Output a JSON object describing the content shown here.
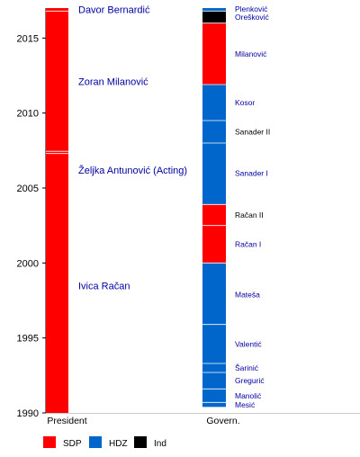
{
  "chart_data": {
    "type": "timeline",
    "ylim": [
      1990,
      2017
    ],
    "yticks": [
      1990,
      1995,
      2000,
      2005,
      2010,
      2015
    ],
    "columns": [
      "President",
      "Govern."
    ],
    "party_colors": {
      "SDP": "#ff0000",
      "HDZ": "#0066cc",
      "Ind": "#000000"
    },
    "legend": [
      {
        "party": "SDP",
        "label": "SDP"
      },
      {
        "party": "HDZ",
        "label": "HDZ"
      },
      {
        "party": "Ind",
        "label": "Ind"
      }
    ],
    "president": [
      {
        "name": "Ivica Račan",
        "start": 1990.0,
        "end": 2007.3,
        "party": "SDP"
      },
      {
        "name": "Željka Antunović (Acting)",
        "start": 2007.3,
        "end": 2007.45,
        "party": "SDP"
      },
      {
        "name": "Zoran Milanović",
        "start": 2007.45,
        "end": 2016.8,
        "party": "SDP"
      },
      {
        "name": "Davor Bernardić",
        "start": 2016.8,
        "end": 2017.0,
        "party": "SDP"
      }
    ],
    "president_label_y": [
      1998.5,
      2006.2,
      2012.1,
      2016.9
    ],
    "government": [
      {
        "name": "Mesić",
        "start": 1990.4,
        "end": 1990.7,
        "party": "HDZ",
        "highlight": true
      },
      {
        "name": "Manolić",
        "start": 1990.7,
        "end": 1991.6,
        "party": "HDZ",
        "highlight": true
      },
      {
        "name": "Gregurić",
        "start": 1991.6,
        "end": 1992.7,
        "party": "HDZ",
        "highlight": true
      },
      {
        "name": "Šarinić",
        "start": 1992.7,
        "end": 1993.3,
        "party": "HDZ",
        "highlight": true
      },
      {
        "name": "Valentić",
        "start": 1993.3,
        "end": 1995.9,
        "party": "HDZ",
        "highlight": true
      },
      {
        "name": "Mateša",
        "start": 1995.9,
        "end": 2000.0,
        "party": "HDZ",
        "highlight": true
      },
      {
        "name": "Račan I",
        "start": 2000.0,
        "end": 2002.5,
        "party": "SDP",
        "highlight": true
      },
      {
        "name": "Račan II",
        "start": 2002.5,
        "end": 2003.9,
        "party": "SDP",
        "highlight": false
      },
      {
        "name": "Sanader I",
        "start": 2003.9,
        "end": 2008.0,
        "party": "HDZ",
        "highlight": true
      },
      {
        "name": "Sanader II",
        "start": 2008.0,
        "end": 2009.5,
        "party": "HDZ",
        "highlight": false
      },
      {
        "name": "Kosor",
        "start": 2009.5,
        "end": 2011.9,
        "party": "HDZ",
        "highlight": true
      },
      {
        "name": "Milanović",
        "start": 2011.9,
        "end": 2016.0,
        "party": "SDP",
        "highlight": true
      },
      {
        "name": "Orešković",
        "start": 2016.0,
        "end": 2016.8,
        "party": "Ind",
        "highlight": true
      },
      {
        "name": "Plenković",
        "start": 2016.8,
        "end": 2017.0,
        "party": "HDZ",
        "highlight": true
      }
    ],
    "government_label_y": [
      1990.55,
      1991.15,
      1992.15,
      1993.0,
      1994.6,
      1997.9,
      2001.25,
      2003.2,
      2006.0,
      2008.75,
      2010.7,
      2013.95,
      2016.4,
      2016.95
    ]
  }
}
